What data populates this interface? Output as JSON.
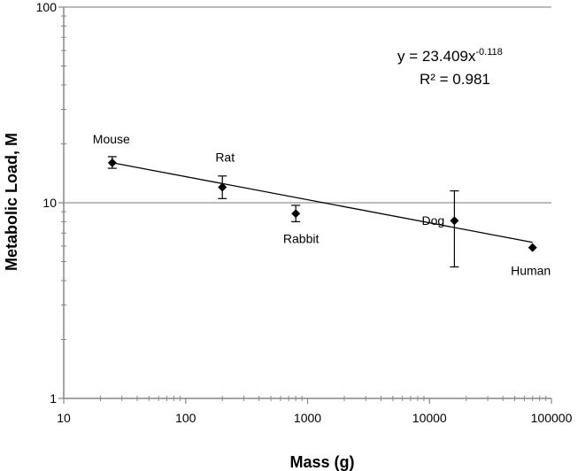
{
  "chart_data": {
    "type": "scatter",
    "title": "",
    "xlabel": "Mass (g)",
    "ylabel": "Metabolic Load, M",
    "x_scale": "log",
    "y_scale": "log",
    "xlim": [
      10,
      100000
    ],
    "ylim": [
      1,
      100
    ],
    "x_tick_labels": [
      "10",
      "100",
      "1000",
      "10000",
      "100000"
    ],
    "y_tick_labels": [
      "1",
      "10",
      "100"
    ],
    "grid": "horizontal major gridlines",
    "legend": "none",
    "points": [
      {
        "label": "Mouse",
        "x": 25,
        "y": 16.0,
        "err_low": 15.0,
        "err_high": 17.2
      },
      {
        "label": "Rat",
        "x": 200,
        "y": 12.0,
        "err_low": 10.5,
        "err_high": 13.7
      },
      {
        "label": "Rabbit",
        "x": 800,
        "y": 8.8,
        "err_low": 8.0,
        "err_high": 9.7
      },
      {
        "label": "Dog",
        "x": 16000,
        "y": 8.1,
        "err_low": 4.7,
        "err_high": 11.5
      },
      {
        "label": "Human",
        "x": 70000,
        "y": 5.9,
        "err_low": 5.9,
        "err_high": 5.9
      }
    ],
    "trendline": {
      "type": "power",
      "coefficient": 23.409,
      "exponent": -0.118,
      "x_range": [
        25,
        70000
      ],
      "equation_lhs": "y = 23.409x",
      "equation_exponent": "-0.118",
      "r2_text": "R² = 0.981"
    },
    "colors": {
      "marker": "#000000",
      "gridline": "#a6a6a6",
      "axis": "#868686"
    }
  }
}
